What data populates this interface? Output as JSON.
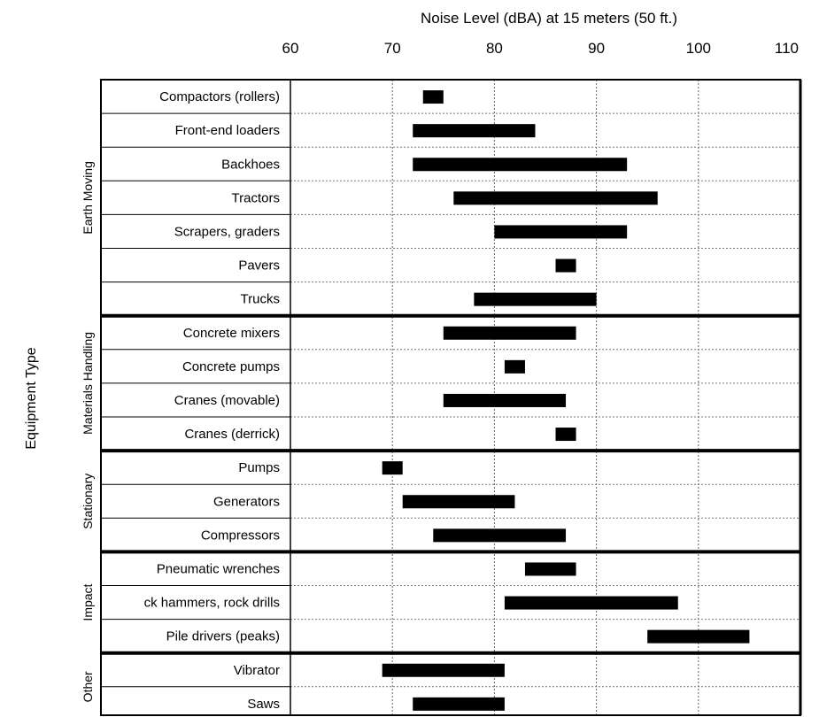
{
  "chart_data": {
    "type": "bar",
    "title": "Noise Level (dBA) at 15 meters (50 ft.)",
    "xlabel": "Noise Level (dBA) at 15 meters (50 ft.)",
    "ylabel": "Equipment Type",
    "xlim": [
      60,
      110
    ],
    "xticks": [
      "60",
      "70",
      "80",
      "90",
      "100",
      "110"
    ],
    "tick_values": [
      60,
      70,
      80,
      90,
      100,
      110
    ],
    "grid": true,
    "bar_color": "#000000",
    "groups": [
      {
        "name": "Earth Moving",
        "items": [
          {
            "label": "Compactors (rollers)",
            "min": 73,
            "max": 75
          },
          {
            "label": "Front-end loaders",
            "min": 72,
            "max": 84
          },
          {
            "label": "Backhoes",
            "min": 72,
            "max": 93
          },
          {
            "label": "Tractors",
            "min": 76,
            "max": 96
          },
          {
            "label": "Scrapers, graders",
            "min": 80,
            "max": 93
          },
          {
            "label": "Pavers",
            "min": 86,
            "max": 88
          },
          {
            "label": "Trucks",
            "min": 78,
            "max": 90
          }
        ]
      },
      {
        "name": "Materials Handling",
        "items": [
          {
            "label": "Concrete mixers",
            "min": 75,
            "max": 88
          },
          {
            "label": "Concrete pumps",
            "min": 81,
            "max": 83
          },
          {
            "label": "Cranes (movable)",
            "min": 75,
            "max": 87
          },
          {
            "label": "Cranes (derrick)",
            "min": 86,
            "max": 88
          }
        ]
      },
      {
        "name": "Stationary",
        "items": [
          {
            "label": "Pumps",
            "min": 69,
            "max": 71
          },
          {
            "label": "Generators",
            "min": 71,
            "max": 82
          },
          {
            "label": "Compressors",
            "min": 74,
            "max": 87
          }
        ]
      },
      {
        "name": "Impact",
        "items": [
          {
            "label": "Pneumatic wrenches",
            "min": 83,
            "max": 88
          },
          {
            "label": "ck hammers, rock drills",
            "min": 81,
            "max": 98
          },
          {
            "label": "Pile drivers (peaks)",
            "min": 95,
            "max": 105
          }
        ]
      },
      {
        "name": "Other",
        "items": [
          {
            "label": "Vibrator",
            "min": 69,
            "max": 81
          },
          {
            "label": "Saws",
            "min": 72,
            "max": 81
          }
        ]
      }
    ]
  }
}
